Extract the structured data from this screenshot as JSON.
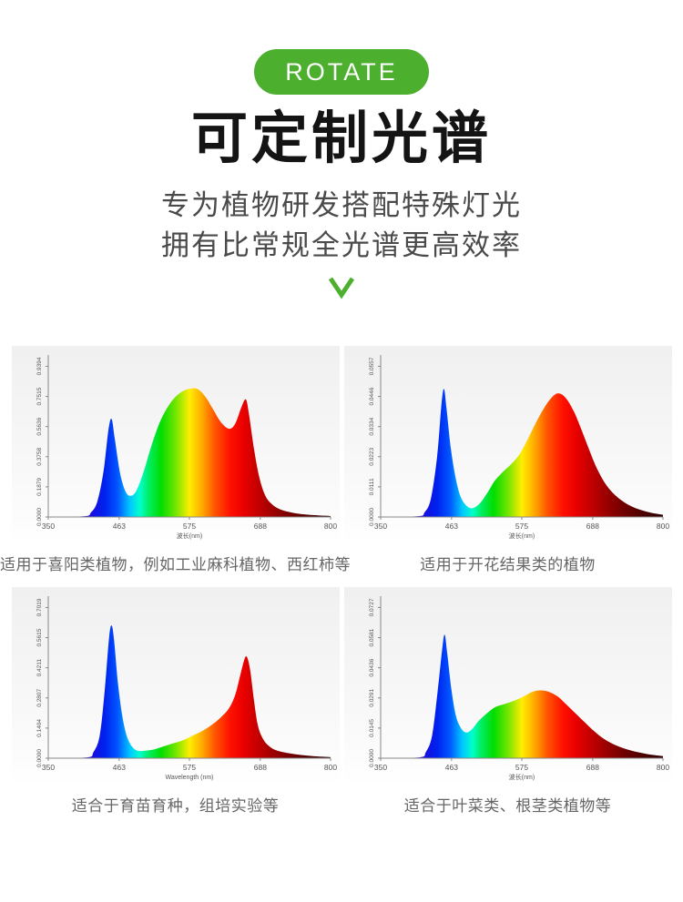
{
  "badge": {
    "label": "ROTATE"
  },
  "title": "可定制光谱",
  "subtitle_line1": "专为植物研发搭配特殊灯光",
  "subtitle_line2": "拥有比常规全光谱更高效率",
  "chevron_icon": "chevron-down",
  "colors": {
    "accent_green": "#4caf2e",
    "title_text": "#141414",
    "subtitle_text": "#4a4a4a",
    "caption_text": "#666666",
    "axis_line": "#888888",
    "tick_text": "#555555"
  },
  "spectrum_gradient": [
    {
      "at": 0.0,
      "color": "#3a00c8"
    },
    {
      "at": 0.12,
      "color": "#2a00d4"
    },
    {
      "at": 0.2,
      "color": "#0022ee"
    },
    {
      "at": 0.245,
      "color": "#0055ff"
    },
    {
      "at": 0.29,
      "color": "#00c8ff"
    },
    {
      "at": 0.325,
      "color": "#00ffcc"
    },
    {
      "at": 0.355,
      "color": "#00ee66"
    },
    {
      "at": 0.4,
      "color": "#00dd00"
    },
    {
      "at": 0.455,
      "color": "#7ce600"
    },
    {
      "at": 0.5,
      "color": "#ffee00"
    },
    {
      "at": 0.545,
      "color": "#ffaa00"
    },
    {
      "at": 0.59,
      "color": "#ff5500"
    },
    {
      "at": 0.645,
      "color": "#ff1100"
    },
    {
      "at": 0.69,
      "color": "#ea0000"
    },
    {
      "at": 0.755,
      "color": "#bb0000"
    },
    {
      "at": 0.845,
      "color": "#7a0000"
    },
    {
      "at": 0.93,
      "color": "#4a0000"
    },
    {
      "at": 1.0,
      "color": "#2e0000"
    }
  ],
  "chart_data": [
    {
      "type": "area",
      "caption": "适用于喜阳类植物，例如工业麻科植物、西红柿等",
      "xlabel": "波长(nm)",
      "x_ticks": [
        350,
        463,
        575,
        688,
        800
      ],
      "y_ticks": [
        "0.0000",
        "0.1879",
        "0.3758",
        "0.5636",
        "0.7515",
        "0.9394"
      ],
      "xlim": [
        350,
        800
      ],
      "ylim": [
        0,
        0.9394
      ],
      "legend": false,
      "grid": false,
      "points": [
        [
          350,
          0
        ],
        [
          408,
          0.005
        ],
        [
          418,
          0.028
        ],
        [
          428,
          0.094
        ],
        [
          438,
          0.282
        ],
        [
          446,
          0.545
        ],
        [
          451,
          0.611
        ],
        [
          456,
          0.489
        ],
        [
          464,
          0.282
        ],
        [
          472,
          0.169
        ],
        [
          480,
          0.132
        ],
        [
          490,
          0.16
        ],
        [
          502,
          0.282
        ],
        [
          515,
          0.451
        ],
        [
          528,
          0.592
        ],
        [
          542,
          0.695
        ],
        [
          556,
          0.761
        ],
        [
          570,
          0.794
        ],
        [
          587,
          0.799
        ],
        [
          600,
          0.752
        ],
        [
          612,
          0.676
        ],
        [
          625,
          0.592
        ],
        [
          638,
          0.55
        ],
        [
          648,
          0.582
        ],
        [
          658,
          0.686
        ],
        [
          665,
          0.733
        ],
        [
          670,
          0.639
        ],
        [
          678,
          0.423
        ],
        [
          686,
          0.254
        ],
        [
          695,
          0.141
        ],
        [
          705,
          0.085
        ],
        [
          720,
          0.047
        ],
        [
          745,
          0.023
        ],
        [
          775,
          0.011
        ],
        [
          800,
          0.006
        ]
      ]
    },
    {
      "type": "area",
      "caption": "适用于开花结果类的植物",
      "xlabel": "波长(nm)",
      "x_ticks": [
        350,
        463,
        575,
        688,
        800
      ],
      "y_ticks": [
        "0.0000",
        "0.0111",
        "0.0223",
        "0.0334",
        "0.0446",
        "0.0557"
      ],
      "xlim": [
        350,
        800
      ],
      "ylim": [
        0,
        0.0557
      ],
      "legend": false,
      "grid": false,
      "points": [
        [
          350,
          0
        ],
        [
          410,
          0.0003
        ],
        [
          420,
          0.0017
        ],
        [
          430,
          0.0067
        ],
        [
          440,
          0.0223
        ],
        [
          447,
          0.0418
        ],
        [
          451,
          0.0473
        ],
        [
          455,
          0.0401
        ],
        [
          462,
          0.0251
        ],
        [
          470,
          0.0139
        ],
        [
          478,
          0.0072
        ],
        [
          488,
          0.0039
        ],
        [
          497,
          0.0033
        ],
        [
          508,
          0.005
        ],
        [
          520,
          0.0089
        ],
        [
          532,
          0.0134
        ],
        [
          545,
          0.0167
        ],
        [
          558,
          0.0195
        ],
        [
          572,
          0.0234
        ],
        [
          585,
          0.029
        ],
        [
          598,
          0.0351
        ],
        [
          610,
          0.0401
        ],
        [
          622,
          0.044
        ],
        [
          633,
          0.0457
        ],
        [
          645,
          0.044
        ],
        [
          658,
          0.039
        ],
        [
          670,
          0.0323
        ],
        [
          683,
          0.0245
        ],
        [
          695,
          0.0178
        ],
        [
          710,
          0.0117
        ],
        [
          728,
          0.0072
        ],
        [
          750,
          0.0039
        ],
        [
          775,
          0.0019
        ],
        [
          800,
          0.0008
        ]
      ]
    },
    {
      "type": "area",
      "caption": "适合于育苗育种，组培实验等",
      "xlabel": "Wavelength (nm)",
      "x_ticks": [
        350,
        463,
        575,
        688,
        800
      ],
      "y_ticks": [
        "0.0000",
        "0.1404",
        "0.2807",
        "0.4211",
        "0.5615",
        "0.7019"
      ],
      "xlim": [
        350,
        800
      ],
      "ylim": [
        0,
        0.7019
      ],
      "legend": false,
      "grid": false,
      "points": [
        [
          350,
          0
        ],
        [
          412,
          0.0035
        ],
        [
          422,
          0.028
        ],
        [
          432,
          0.105
        ],
        [
          440,
          0.316
        ],
        [
          447,
          0.562
        ],
        [
          451,
          0.618
        ],
        [
          455,
          0.547
        ],
        [
          461,
          0.351
        ],
        [
          468,
          0.197
        ],
        [
          475,
          0.105
        ],
        [
          483,
          0.056
        ],
        [
          492,
          0.035
        ],
        [
          505,
          0.035
        ],
        [
          520,
          0.042
        ],
        [
          535,
          0.056
        ],
        [
          550,
          0.07
        ],
        [
          565,
          0.084
        ],
        [
          580,
          0.105
        ],
        [
          595,
          0.126
        ],
        [
          610,
          0.154
        ],
        [
          625,
          0.19
        ],
        [
          638,
          0.232
        ],
        [
          648,
          0.295
        ],
        [
          656,
          0.386
        ],
        [
          663,
          0.463
        ],
        [
          667,
          0.47
        ],
        [
          672,
          0.407
        ],
        [
          678,
          0.267
        ],
        [
          684,
          0.154
        ],
        [
          692,
          0.091
        ],
        [
          702,
          0.056
        ],
        [
          715,
          0.035
        ],
        [
          740,
          0.02
        ],
        [
          770,
          0.01
        ],
        [
          800,
          0.005
        ]
      ]
    },
    {
      "type": "area",
      "caption": "适合于叶菜类、根茎类植物等",
      "xlabel": "波长(nm)",
      "x_ticks": [
        350,
        463,
        575,
        688,
        800
      ],
      "y_ticks": [
        "0.0000",
        "0.0145",
        "0.0291",
        "0.0436",
        "0.0581",
        "0.0727"
      ],
      "xlim": [
        350,
        800
      ],
      "ylim": [
        0,
        0.0727
      ],
      "legend": false,
      "grid": false,
      "points": [
        [
          350,
          0
        ],
        [
          412,
          0.0004
        ],
        [
          422,
          0.0029
        ],
        [
          432,
          0.0109
        ],
        [
          441,
          0.0327
        ],
        [
          448,
          0.0523
        ],
        [
          452,
          0.0596
        ],
        [
          456,
          0.0509
        ],
        [
          463,
          0.0327
        ],
        [
          470,
          0.0204
        ],
        [
          478,
          0.0145
        ],
        [
          486,
          0.0124
        ],
        [
          495,
          0.0138
        ],
        [
          507,
          0.0182
        ],
        [
          520,
          0.0218
        ],
        [
          533,
          0.0247
        ],
        [
          548,
          0.0262
        ],
        [
          562,
          0.0276
        ],
        [
          578,
          0.0298
        ],
        [
          592,
          0.032
        ],
        [
          605,
          0.0327
        ],
        [
          618,
          0.032
        ],
        [
          632,
          0.0298
        ],
        [
          645,
          0.0262
        ],
        [
          660,
          0.0218
        ],
        [
          675,
          0.0174
        ],
        [
          690,
          0.0131
        ],
        [
          705,
          0.0095
        ],
        [
          725,
          0.0062
        ],
        [
          750,
          0.0036
        ],
        [
          775,
          0.002
        ],
        [
          800,
          0.001
        ]
      ]
    }
  ]
}
